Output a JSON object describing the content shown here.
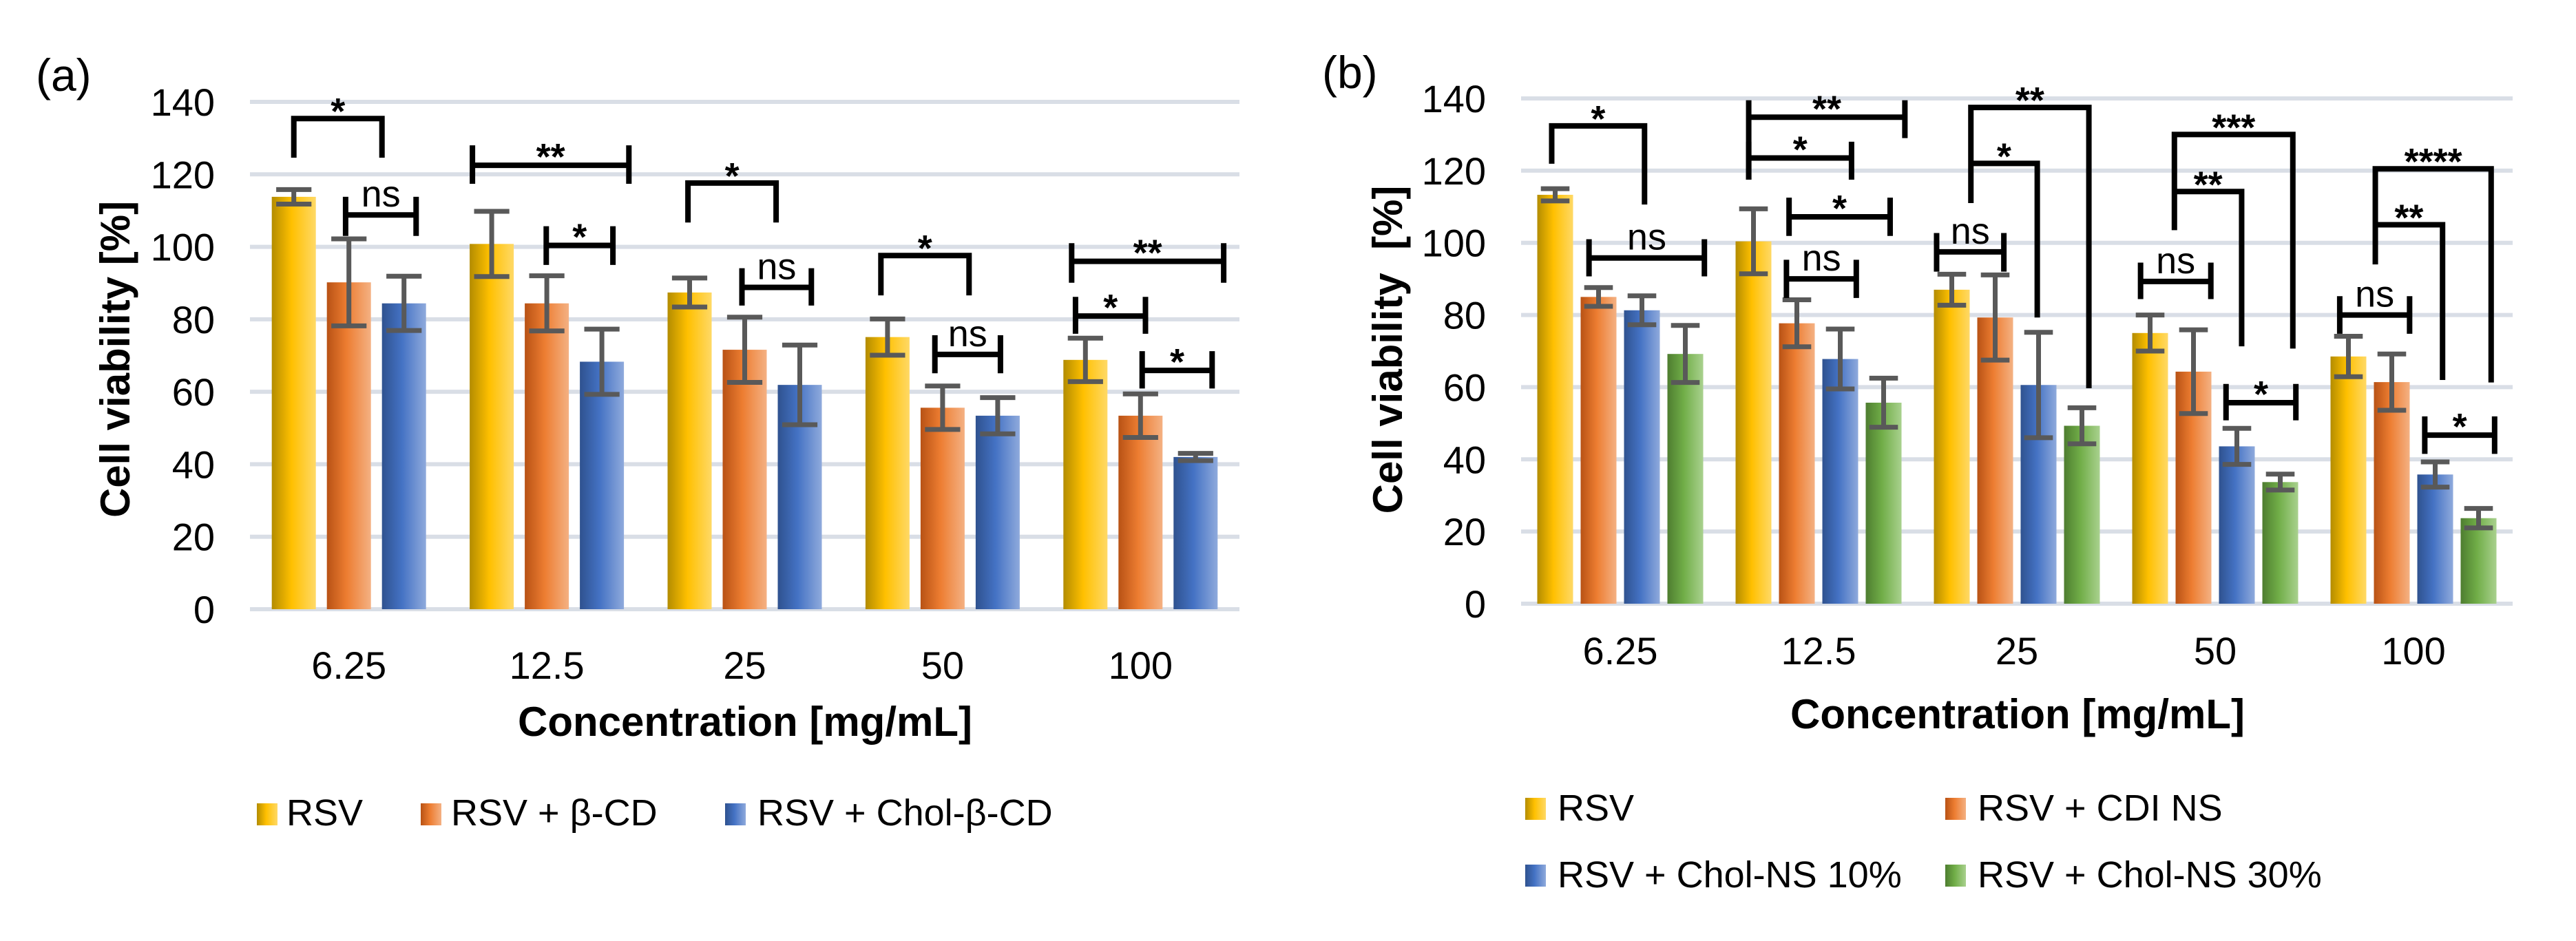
{
  "chart_data": [
    {
      "id": "a",
      "panel_label": "(a)",
      "type": "bar",
      "title": "",
      "xlabel": "Concentration [mg/mL]",
      "ylabel": "Cell viability [%]",
      "ylim": [
        0,
        140
      ],
      "yticks": [
        0,
        20,
        40,
        60,
        80,
        100,
        120,
        140
      ],
      "grid": true,
      "legend_position": "bottom",
      "categories": [
        "6.25",
        "12.5",
        "25",
        "50",
        "100"
      ],
      "series": [
        {
          "name": "RSV",
          "color": "#FFC000",
          "values": [
            113.8,
            100.8,
            87.4,
            75.1,
            68.8
          ],
          "errors": [
            2.0,
            9.0,
            4.0,
            5.0,
            6.0
          ]
        },
        {
          "name": "RSV + β-CD",
          "color": "#ED7D31",
          "values": [
            90.2,
            84.4,
            71.6,
            55.6,
            53.4
          ],
          "errors": [
            12.0,
            7.6,
            9.0,
            6.0,
            6.0
          ]
        },
        {
          "name": "RSV + Chol-β-CD",
          "color": "#4472C4",
          "values": [
            84.4,
            68.3,
            61.9,
            53.4,
            42.0
          ],
          "errors": [
            7.5,
            9.0,
            11.0,
            5.0,
            1.0
          ]
        }
      ],
      "significance": [
        {
          "group": 0,
          "label": "*",
          "x1": 0.0,
          "x2": 1.6,
          "top": 135.4,
          "y1": 124.6,
          "y2": 124.6,
          "style": "cap"
        },
        {
          "group": 0,
          "label": "ns",
          "x1": 0.94,
          "x2": 2.22,
          "top": 108.8,
          "y1": 103.0,
          "y2": 103.0,
          "style": "i",
          "span": 5.0
        },
        {
          "group": 1,
          "label": "**",
          "x1": -0.35,
          "x2": 2.49,
          "top": 122.5,
          "y1": 117.4,
          "y2": 117.4,
          "style": "i",
          "span": 5.5
        },
        {
          "group": 1,
          "label": "*",
          "x1": 0.99,
          "x2": 2.2,
          "top": 100.4,
          "y1": 95.0,
          "y2": 95.0,
          "style": "i",
          "span": 5.3
        },
        {
          "group": 2,
          "label": "*",
          "x1": -0.03,
          "x2": 1.57,
          "top": 117.6,
          "y1": 106.7,
          "y2": 106.7,
          "style": "cap"
        },
        {
          "group": 2,
          "label": "ns",
          "x1": 0.95,
          "x2": 2.21,
          "top": 88.8,
          "y1": 83.8,
          "y2": 83.8,
          "style": "i",
          "span": 5.3
        },
        {
          "group": 3,
          "label": "*",
          "x1": -0.12,
          "x2": 1.48,
          "top": 97.6,
          "y1": 86.6,
          "y2": 86.6,
          "style": "cap"
        },
        {
          "group": 3,
          "label": "ns",
          "x1": 0.86,
          "x2": 2.05,
          "top": 70.3,
          "y1": 65.1,
          "y2": 65.1,
          "style": "i",
          "span": 5.3
        },
        {
          "group": 4,
          "label": "**",
          "x1": -0.25,
          "x2": 2.51,
          "top": 96.0,
          "y1": 90.1,
          "y2": 90.1,
          "style": "i",
          "span": 5.0
        },
        {
          "group": 4,
          "label": "*",
          "x1": -0.18,
          "x2": 1.09,
          "top": 80.9,
          "y1": 76.0,
          "y2": 76.0,
          "style": "i",
          "span": 5.3
        },
        {
          "group": 4,
          "label": "*",
          "x1": 1.03,
          "x2": 2.3,
          "top": 65.9,
          "y1": 60.9,
          "y2": 60.9,
          "style": "i",
          "span": 5.3
        }
      ]
    },
    {
      "id": "b",
      "panel_label": "(b)",
      "type": "bar",
      "title": "",
      "xlabel": "Concentration [mg/mL]",
      "ylabel": "Cell viability  [%]",
      "ylim": [
        0,
        140
      ],
      "yticks": [
        0,
        20,
        40,
        60,
        80,
        100,
        120,
        140
      ],
      "grid": true,
      "legend_position": "bottom",
      "categories": [
        "6.25",
        "12.5",
        "25",
        "50",
        "100"
      ],
      "series": [
        {
          "name": "RSV",
          "color": "#FFC000",
          "values": [
            113.3,
            100.4,
            87.0,
            75.0,
            68.5
          ],
          "errors": [
            1.7,
            9.0,
            4.3,
            5.0,
            5.6
          ]
        },
        {
          "name": "RSV + CDI NS",
          "color": "#ED7D31",
          "values": [
            85.0,
            77.7,
            79.3,
            64.3,
            61.4
          ],
          "errors": [
            2.6,
            6.5,
            11.8,
            11.6,
            7.8
          ]
        },
        {
          "name": "RSV + Chol-NS 10%",
          "color": "#4472C4",
          "values": [
            81.3,
            67.8,
            60.6,
            43.6,
            35.8
          ],
          "errors": [
            4.0,
            8.3,
            14.6,
            5.0,
            3.5
          ]
        },
        {
          "name": "RSV + Chol-NS 30%",
          "color": "#70AD47",
          "values": [
            69.2,
            55.7,
            49.3,
            33.7,
            23.7
          ],
          "errors": [
            7.9,
            6.8,
            5.0,
            2.2,
            2.7
          ]
        }
      ],
      "significance": [
        {
          "group": 0,
          "label": "*",
          "x1": -0.08,
          "x2": 2.06,
          "top": 132.4,
          "y1": 121.9,
          "y2": 110.6,
          "style": "cap"
        },
        {
          "group": 0,
          "label": "ns",
          "x1": 0.78,
          "x2": 3.44,
          "top": 95.8,
          "y1": 90.7,
          "y2": 90.7,
          "style": "i",
          "span": 5.2
        },
        {
          "group": 1,
          "label": "**",
          "x1": -0.11,
          "x2": 3.49,
          "top": 134.8,
          "y1": 117.5,
          "y2": 129.0,
          "style": "i",
          "span": 4.7
        },
        {
          "group": 1,
          "label": "*",
          "x1": -0.11,
          "x2": 2.26,
          "top": 123.5,
          "y1": 117.5,
          "y2": 117.5,
          "style": "i",
          "span": 4.5
        },
        {
          "group": 1,
          "label": "*",
          "x1": 0.82,
          "x2": 3.15,
          "top": 107.2,
          "y1": 101.9,
          "y2": 101.9,
          "style": "i",
          "span": 5.3
        },
        {
          "group": 1,
          "label": "ns",
          "x1": 0.76,
          "x2": 2.37,
          "top": 90.0,
          "y1": 84.7,
          "y2": 84.7,
          "style": "i",
          "span": 5.3
        },
        {
          "group": 2,
          "label": "**",
          "x1": 0.44,
          "x2": 3.16,
          "top": 137.5,
          "y1": 111.0,
          "y2": 59.7,
          "style": "cap"
        },
        {
          "group": 2,
          "label": "*",
          "x1": 0.44,
          "x2": 1.97,
          "top": 122.0,
          "y1": 122.0,
          "y2": 79.3,
          "style": "cap"
        },
        {
          "group": 2,
          "label": "ns",
          "x1": -0.35,
          "x2": 1.2,
          "top": 97.5,
          "y1": 92.0,
          "y2": 92.0,
          "style": "i",
          "span": 5.2
        },
        {
          "group": 3,
          "label": "***",
          "x1": 0.56,
          "x2": 3.29,
          "top": 130.0,
          "y1": 103.5,
          "y2": 70.7,
          "style": "cap"
        },
        {
          "group": 3,
          "label": "**",
          "x1": 0.56,
          "x2": 2.11,
          "top": 114.2,
          "y1": 114.2,
          "y2": 71.3,
          "style": "cap"
        },
        {
          "group": 3,
          "label": "ns",
          "x1": -0.22,
          "x2": 1.4,
          "top": 89.3,
          "y1": 84.4,
          "y2": 84.4,
          "style": "i",
          "span": 5.2
        },
        {
          "group": 3,
          "label": "*",
          "x1": 1.75,
          "x2": 3.36,
          "top": 55.7,
          "y1": 50.8,
          "y2": 50.8,
          "style": "i",
          "span": 5.2
        },
        {
          "group": 4,
          "label": "****",
          "x1": 0.62,
          "x2": 3.29,
          "top": 120.5,
          "y1": 94.0,
          "y2": 61.3,
          "style": "cap"
        },
        {
          "group": 4,
          "label": "**",
          "x1": 0.62,
          "x2": 2.17,
          "top": 105.0,
          "y1": 105.0,
          "y2": 62.0,
          "style": "cap"
        },
        {
          "group": 4,
          "label": "ns",
          "x1": -0.2,
          "x2": 1.41,
          "top": 80.0,
          "y1": 74.8,
          "y2": 74.8,
          "style": "i",
          "span": 5.2
        },
        {
          "group": 4,
          "label": "*",
          "x1": 1.76,
          "x2": 3.37,
          "top": 46.7,
          "y1": 41.5,
          "y2": 41.5,
          "style": "i",
          "span": 5.2
        }
      ]
    }
  ],
  "gradients": {
    "#FFC000": [
      "#B38C00",
      "#FFC000",
      "#FFD966"
    ],
    "#ED7D31": [
      "#B85215",
      "#ED7D31",
      "#F4B183"
    ],
    "#4472C4": [
      "#2F528F",
      "#4472C4",
      "#8FAADC"
    ],
    "#70AD47": [
      "#4E7D30",
      "#70AD47",
      "#A9D18E"
    ]
  }
}
